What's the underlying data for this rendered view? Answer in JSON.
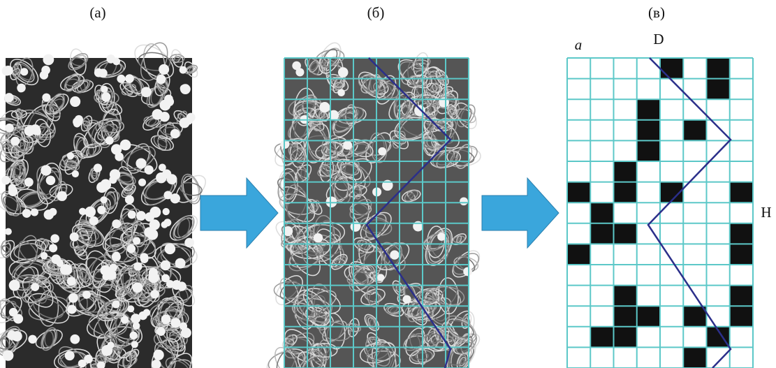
{
  "panels": [
    {
      "label": "(а)"
    },
    {
      "label": "(б)"
    },
    {
      "label": "(в)"
    }
  ],
  "annotations": {
    "corner_label": "a",
    "width_label": "D",
    "height_label": "H"
  }
}
